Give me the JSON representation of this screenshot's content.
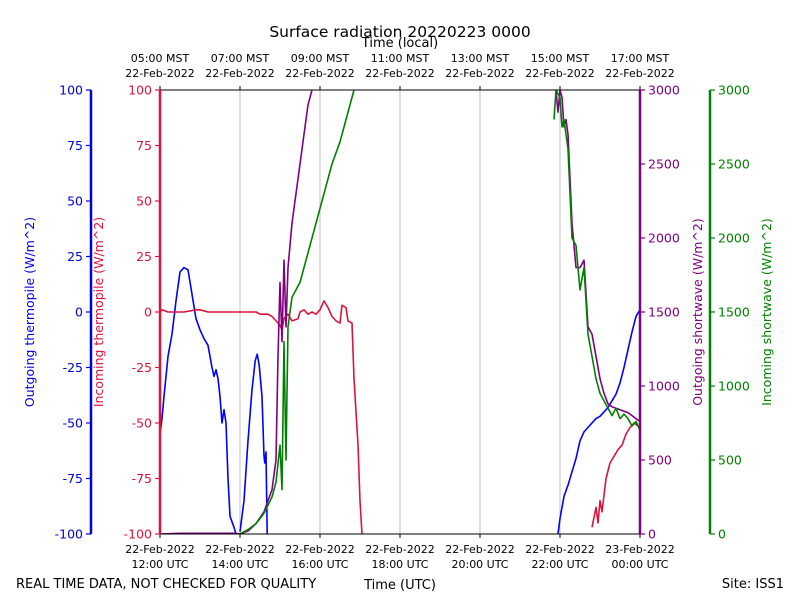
{
  "chart_data": {
    "type": "line",
    "title": "Surface radiation 20220223 0000",
    "top_axis_label": "Time (local)",
    "bottom_axis_label": "Time (UTC)",
    "footer_left": "REAL TIME DATA, NOT CHECKED FOR QUALITY",
    "footer_right": "Site: ISS1",
    "x_range_hours": [
      12,
      24
    ],
    "grid": "vertical lines at each 2-hour tick",
    "top_ticks": [
      {
        "hour": 12,
        "l1": "05:00 MST",
        "l2": "22-Feb-2022"
      },
      {
        "hour": 14,
        "l1": "07:00 MST",
        "l2": "22-Feb-2022"
      },
      {
        "hour": 16,
        "l1": "09:00 MST",
        "l2": "22-Feb-2022"
      },
      {
        "hour": 18,
        "l1": "11:00 MST",
        "l2": "22-Feb-2022"
      },
      {
        "hour": 20,
        "l1": "13:00 MST",
        "l2": "22-Feb-2022"
      },
      {
        "hour": 22,
        "l1": "15:00 MST",
        "l2": "22-Feb-2022"
      },
      {
        "hour": 24,
        "l1": "17:00 MST",
        "l2": "22-Feb-2022"
      }
    ],
    "bottom_ticks": [
      {
        "hour": 12,
        "l1": "22-Feb-2022",
        "l2": "12:00 UTC"
      },
      {
        "hour": 14,
        "l1": "22-Feb-2022",
        "l2": "14:00 UTC"
      },
      {
        "hour": 16,
        "l1": "22-Feb-2022",
        "l2": "16:00 UTC"
      },
      {
        "hour": 18,
        "l1": "22-Feb-2022",
        "l2": "18:00 UTC"
      },
      {
        "hour": 20,
        "l1": "22-Feb-2022",
        "l2": "20:00 UTC"
      },
      {
        "hour": 22,
        "l1": "22-Feb-2022",
        "l2": "22:00 UTC"
      },
      {
        "hour": 24,
        "l1": "23-Feb-2022",
        "l2": "00:00 UTC"
      }
    ],
    "axes": [
      {
        "id": "out_thermo",
        "label": "Outgoing thermopile (W/m^2)",
        "color": "#0000dd",
        "side": "left-outer",
        "range": [
          -100,
          100
        ],
        "ticks": [
          -100,
          -75,
          -50,
          -25,
          0,
          25,
          50,
          75,
          100
        ]
      },
      {
        "id": "in_thermo",
        "label": "Incoming thermopile (W/m^2)",
        "color": "#dc143c",
        "side": "left-inner",
        "range": [
          -100,
          100
        ],
        "ticks": [
          -100,
          -75,
          -50,
          -25,
          0,
          25,
          50,
          75,
          100
        ]
      },
      {
        "id": "out_sw",
        "label": "Outgoing shortwave (W/m^2)",
        "color": "#800080",
        "side": "right-inner",
        "range": [
          0,
          3000
        ],
        "ticks": [
          0,
          500,
          1000,
          1500,
          2000,
          2500,
          3000
        ]
      },
      {
        "id": "in_sw",
        "label": "Incoming shortwave (W/m^2)",
        "color": "#008000",
        "side": "right-outer",
        "range": [
          0,
          3000
        ],
        "ticks": [
          0,
          500,
          1000,
          1500,
          2000,
          2500,
          3000
        ]
      }
    ],
    "series": [
      {
        "name": "Outgoing thermopile (W/m^2)",
        "axis": "out_thermo",
        "color": "#0000ff",
        "segments": [
          [
            [
              12.0,
              -55
            ],
            [
              12.05,
              -48
            ],
            [
              12.1,
              -38
            ],
            [
              12.2,
              -20
            ],
            [
              12.3,
              -10
            ],
            [
              12.4,
              5
            ],
            [
              12.5,
              18
            ],
            [
              12.6,
              20
            ],
            [
              12.7,
              19
            ],
            [
              12.8,
              8
            ],
            [
              12.9,
              -3
            ],
            [
              13.0,
              -8
            ],
            [
              13.1,
              -12
            ],
            [
              13.2,
              -15
            ],
            [
              13.3,
              -25
            ],
            [
              13.35,
              -29
            ],
            [
              13.4,
              -26
            ],
            [
              13.45,
              -30
            ],
            [
              13.5,
              -38
            ],
            [
              13.55,
              -50
            ],
            [
              13.6,
              -44
            ],
            [
              13.65,
              -50
            ],
            [
              13.7,
              -75
            ],
            [
              13.75,
              -92
            ],
            [
              13.85,
              -97
            ],
            [
              13.9,
              -100
            ]
          ],
          [
            [
              14.0,
              -99
            ],
            [
              14.1,
              -85
            ],
            [
              14.2,
              -58
            ],
            [
              14.3,
              -35
            ],
            [
              14.38,
              -22
            ],
            [
              14.43,
              -19
            ],
            [
              14.48,
              -24
            ],
            [
              14.55,
              -38
            ],
            [
              14.6,
              -65
            ],
            [
              14.62,
              -68
            ],
            [
              14.65,
              -63
            ],
            [
              14.68,
              -100
            ]
          ],
          [
            [
              21.95,
              -100
            ],
            [
              22.0,
              -93
            ],
            [
              22.1,
              -83
            ],
            [
              22.2,
              -78
            ],
            [
              22.3,
              -72
            ],
            [
              22.4,
              -66
            ],
            [
              22.5,
              -58
            ],
            [
              22.6,
              -54
            ],
            [
              22.7,
              -52
            ],
            [
              22.8,
              -50
            ],
            [
              22.9,
              -48
            ],
            [
              23.0,
              -47
            ],
            [
              23.1,
              -45
            ],
            [
              23.2,
              -43
            ],
            [
              23.3,
              -40
            ],
            [
              23.4,
              -37
            ],
            [
              23.5,
              -32
            ],
            [
              23.6,
              -25
            ],
            [
              23.7,
              -17
            ],
            [
              23.8,
              -9
            ],
            [
              23.9,
              -2
            ],
            [
              24.0,
              1
            ]
          ]
        ]
      },
      {
        "name": "Incoming thermopile (W/m^2)",
        "axis": "in_thermo",
        "color": "#dc143c",
        "segments": [
          [
            [
              12.0,
              0
            ],
            [
              12.05,
              1
            ],
            [
              12.2,
              0
            ],
            [
              12.6,
              0
            ],
            [
              12.9,
              1
            ],
            [
              13.0,
              1
            ],
            [
              13.2,
              0
            ],
            [
              13.5,
              0
            ],
            [
              14.0,
              0
            ],
            [
              14.4,
              0
            ],
            [
              14.5,
              -1
            ],
            [
              14.7,
              -1
            ],
            [
              14.8,
              -2
            ],
            [
              14.9,
              -4
            ],
            [
              15.0,
              -6
            ],
            [
              15.05,
              -8
            ],
            [
              15.1,
              -3
            ],
            [
              15.2,
              -1
            ],
            [
              15.3,
              -4
            ],
            [
              15.45,
              -3
            ],
            [
              15.5,
              0
            ],
            [
              15.6,
              1
            ],
            [
              15.7,
              -1
            ],
            [
              15.8,
              0
            ],
            [
              15.9,
              -1
            ],
            [
              16.0,
              1
            ],
            [
              16.1,
              5
            ],
            [
              16.2,
              2
            ],
            [
              16.3,
              -2
            ],
            [
              16.4,
              -4
            ],
            [
              16.5,
              -5
            ],
            [
              16.55,
              3
            ],
            [
              16.65,
              2
            ],
            [
              16.7,
              -4
            ],
            [
              16.8,
              -5
            ],
            [
              16.85,
              -30
            ],
            [
              16.95,
              -60
            ],
            [
              17.0,
              -85
            ],
            [
              17.05,
              -100
            ]
          ],
          [
            [
              22.8,
              -97
            ],
            [
              22.9,
              -88
            ],
            [
              22.95,
              -95
            ],
            [
              23.0,
              -85
            ],
            [
              23.05,
              -90
            ],
            [
              23.15,
              -75
            ],
            [
              23.25,
              -68
            ],
            [
              23.35,
              -65
            ],
            [
              23.45,
              -62
            ],
            [
              23.55,
              -60
            ],
            [
              23.65,
              -55
            ],
            [
              23.75,
              -52
            ],
            [
              23.85,
              -50
            ],
            [
              24.0,
              -52
            ]
          ]
        ]
      },
      {
        "name": "Outgoing shortwave (W/m^2)",
        "axis": "out_sw",
        "color": "#800080",
        "segments": [
          [
            [
              12.0,
              0
            ],
            [
              12.5,
              5
            ],
            [
              13.0,
              5
            ],
            [
              13.5,
              5
            ],
            [
              13.9,
              5
            ],
            [
              14.0,
              0
            ],
            [
              14.2,
              20
            ],
            [
              14.4,
              70
            ],
            [
              14.6,
              150
            ],
            [
              14.8,
              300
            ],
            [
              14.9,
              500
            ],
            [
              14.95,
              1200
            ],
            [
              15.0,
              1700
            ],
            [
              15.05,
              1300
            ],
            [
              15.1,
              1850
            ],
            [
              15.15,
              1400
            ],
            [
              15.2,
              1800
            ],
            [
              15.3,
              2100
            ],
            [
              15.4,
              2300
            ],
            [
              15.5,
              2500
            ],
            [
              15.6,
              2700
            ],
            [
              15.7,
              2900
            ],
            [
              15.8,
              3000
            ]
          ],
          [
            [
              21.9,
              3000
            ],
            [
              21.95,
              2850
            ],
            [
              22.0,
              3000
            ],
            [
              22.05,
              2950
            ],
            [
              22.1,
              2750
            ],
            [
              22.15,
              2800
            ],
            [
              22.2,
              2700
            ],
            [
              22.3,
              2100
            ],
            [
              22.4,
              1800
            ],
            [
              22.5,
              1800
            ],
            [
              22.6,
              1850
            ],
            [
              22.7,
              1400
            ],
            [
              22.8,
              1350
            ],
            [
              22.9,
              1200
            ],
            [
              23.0,
              1050
            ],
            [
              23.1,
              950
            ],
            [
              23.2,
              880
            ],
            [
              23.3,
              860
            ],
            [
              23.4,
              850
            ],
            [
              23.5,
              840
            ],
            [
              23.6,
              830
            ],
            [
              23.7,
              820
            ],
            [
              23.8,
              800
            ],
            [
              23.9,
              780
            ],
            [
              24.0,
              760
            ]
          ]
        ]
      },
      {
        "name": "Incoming shortwave (W/m^2)",
        "axis": "in_sw",
        "color": "#008000",
        "segments": [
          [
            [
              14.0,
              0
            ],
            [
              14.2,
              30
            ],
            [
              14.4,
              70
            ],
            [
              14.6,
              140
            ],
            [
              14.8,
              250
            ],
            [
              14.9,
              350
            ],
            [
              15.0,
              600
            ],
            [
              15.05,
              300
            ],
            [
              15.1,
              1300
            ],
            [
              15.15,
              500
            ],
            [
              15.2,
              1400
            ],
            [
              15.3,
              1600
            ],
            [
              15.5,
              1700
            ],
            [
              15.7,
              1900
            ],
            [
              15.9,
              2100
            ],
            [
              16.1,
              2300
            ],
            [
              16.3,
              2500
            ],
            [
              16.5,
              2650
            ],
            [
              16.7,
              2850
            ],
            [
              16.85,
              3000
            ]
          ],
          [
            [
              21.85,
              2800
            ],
            [
              21.9,
              3000
            ],
            [
              22.0,
              2950
            ],
            [
              22.05,
              2750
            ],
            [
              22.1,
              2800
            ],
            [
              22.2,
              2600
            ],
            [
              22.3,
              2000
            ],
            [
              22.4,
              1950
            ],
            [
              22.5,
              1650
            ],
            [
              22.6,
              1800
            ],
            [
              22.7,
              1350
            ],
            [
              22.8,
              1200
            ],
            [
              22.9,
              1050
            ],
            [
              23.0,
              950
            ],
            [
              23.1,
              900
            ],
            [
              23.2,
              850
            ],
            [
              23.3,
              800
            ],
            [
              23.4,
              850
            ],
            [
              23.5,
              780
            ],
            [
              23.6,
              810
            ],
            [
              23.7,
              780
            ],
            [
              23.8,
              730
            ],
            [
              23.9,
              760
            ],
            [
              24.0,
              700
            ]
          ]
        ]
      }
    ]
  }
}
